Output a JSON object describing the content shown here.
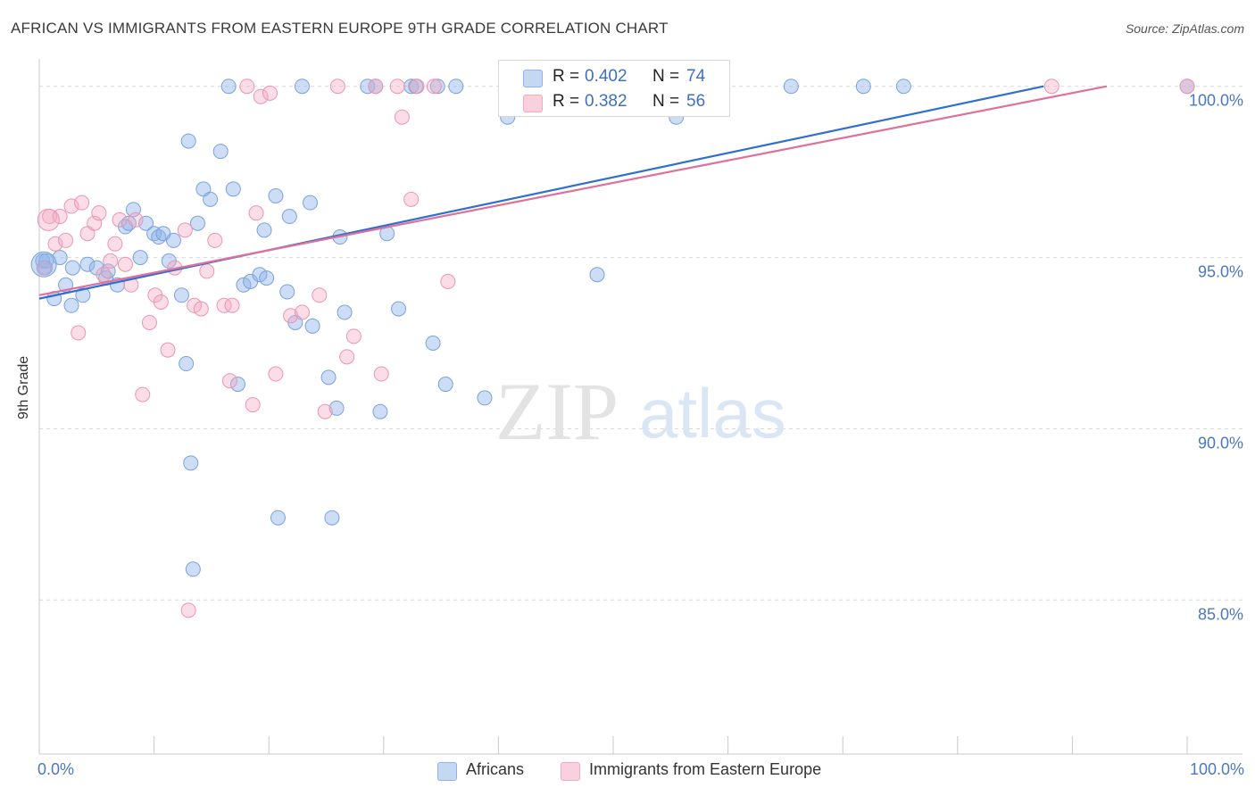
{
  "chart_data": {
    "type": "scatter",
    "title": "AFRICAN VS IMMIGRANTS FROM EASTERN EUROPE 9TH GRADE CORRELATION CHART",
    "source": "Source: ZipAtlas.com",
    "xlabel": "",
    "ylabel": "9th Grade",
    "x_tick_labels": {
      "min": "0.0%",
      "max": "100.0%"
    },
    "y_tick_labels": [
      "100.0%",
      "95.0%",
      "90.0%",
      "85.0%"
    ],
    "y_ticks": [
      100,
      95,
      90,
      85
    ],
    "xlim": [
      0,
      100
    ],
    "ylim": [
      80.5,
      100.8
    ],
    "grid": true,
    "watermark": "ZIPatlas",
    "legend_position": "top-center",
    "colors": {
      "africans": "#8fb3e8",
      "africans_line": "#2f6fcf",
      "immigrants": "#f3a9c0",
      "immigrants_line": "#e0709a",
      "tick_text": "#4a78c2"
    },
    "series": [
      {
        "name": "Africans",
        "R": "0.402",
        "N": "74",
        "trend": {
          "x0": 0,
          "y0": 93.8,
          "x1": 87.5,
          "y1": 100
        },
        "points": [
          [
            0.3,
            94.9
          ],
          [
            0.5,
            94.7
          ],
          [
            1.3,
            93.8
          ],
          [
            1.8,
            95.0
          ],
          [
            2.3,
            94.2
          ],
          [
            2.8,
            93.6
          ],
          [
            2.9,
            94.7
          ],
          [
            3.8,
            93.9
          ],
          [
            4.2,
            94.8
          ],
          [
            5.0,
            94.7
          ],
          [
            5.8,
            94.4
          ],
          [
            6.0,
            94.6
          ],
          [
            6.8,
            94.2
          ],
          [
            7.5,
            95.9
          ],
          [
            7.8,
            96.0
          ],
          [
            8.2,
            96.4
          ],
          [
            8.8,
            95.0
          ],
          [
            9.3,
            96.0
          ],
          [
            10.0,
            95.7
          ],
          [
            10.4,
            95.6
          ],
          [
            10.8,
            95.7
          ],
          [
            11.3,
            94.9
          ],
          [
            11.7,
            95.5
          ],
          [
            12.4,
            93.9
          ],
          [
            13.0,
            98.4
          ],
          [
            12.8,
            91.9
          ],
          [
            13.2,
            89.0
          ],
          [
            13.8,
            96.0
          ],
          [
            14.3,
            97.0
          ],
          [
            14.9,
            96.7
          ],
          [
            15.8,
            98.1
          ],
          [
            16.5,
            100
          ],
          [
            16.9,
            97.0
          ],
          [
            17.3,
            91.3
          ],
          [
            17.8,
            94.2
          ],
          [
            18.4,
            94.3
          ],
          [
            19.2,
            94.5
          ],
          [
            19.6,
            95.8
          ],
          [
            19.8,
            94.4
          ],
          [
            20.6,
            96.8
          ],
          [
            20.8,
            87.4
          ],
          [
            21.6,
            94.0
          ],
          [
            21.8,
            96.2
          ],
          [
            22.3,
            93.1
          ],
          [
            22.9,
            100
          ],
          [
            23.6,
            96.6
          ],
          [
            23.8,
            93.0
          ],
          [
            25.2,
            91.5
          ],
          [
            25.5,
            87.4
          ],
          [
            25.9,
            90.6
          ],
          [
            26.2,
            95.6
          ],
          [
            26.6,
            93.4
          ],
          [
            28.6,
            100
          ],
          [
            29.3,
            100
          ],
          [
            29.7,
            90.5
          ],
          [
            30.3,
            95.7
          ],
          [
            31.3,
            93.5
          ],
          [
            32.4,
            100
          ],
          [
            32.8,
            100
          ],
          [
            34.3,
            92.5
          ],
          [
            34.7,
            100
          ],
          [
            35.4,
            91.3
          ],
          [
            36.3,
            100
          ],
          [
            38.8,
            90.9
          ],
          [
            40.8,
            99.1
          ],
          [
            43.2,
            100
          ],
          [
            48.6,
            94.5
          ],
          [
            55.5,
            99.1
          ],
          [
            65.5,
            100
          ],
          [
            71.8,
            100
          ],
          [
            75.3,
            100
          ],
          [
            100,
            100
          ],
          [
            13.4,
            85.9
          ],
          [
            0.6,
            94.9
          ]
        ]
      },
      {
        "name": "Immigrants from Eastern Europe",
        "R": "0.382",
        "N": "56",
        "trend": {
          "x0": 0,
          "y0": 93.9,
          "x1": 93.0,
          "y1": 100
        },
        "points": [
          [
            0.4,
            94.7
          ],
          [
            0.9,
            96.2
          ],
          [
            1.4,
            95.4
          ],
          [
            1.8,
            96.2
          ],
          [
            2.3,
            95.5
          ],
          [
            2.8,
            96.5
          ],
          [
            3.4,
            92.8
          ],
          [
            3.7,
            96.6
          ],
          [
            4.2,
            95.7
          ],
          [
            4.8,
            96.0
          ],
          [
            5.2,
            96.3
          ],
          [
            5.6,
            94.5
          ],
          [
            6.2,
            94.9
          ],
          [
            6.6,
            95.4
          ],
          [
            7.0,
            96.1
          ],
          [
            7.5,
            94.8
          ],
          [
            8.0,
            94.2
          ],
          [
            8.4,
            96.1
          ],
          [
            9.0,
            91.0
          ],
          [
            9.6,
            93.1
          ],
          [
            10.1,
            93.9
          ],
          [
            10.6,
            93.7
          ],
          [
            11.2,
            92.3
          ],
          [
            11.8,
            94.7
          ],
          [
            12.7,
            95.8
          ],
          [
            13.0,
            84.7
          ],
          [
            13.5,
            93.6
          ],
          [
            14.1,
            93.5
          ],
          [
            14.6,
            94.6
          ],
          [
            15.3,
            95.5
          ],
          [
            16.1,
            93.6
          ],
          [
            16.8,
            93.6
          ],
          [
            16.6,
            91.4
          ],
          [
            18.1,
            100
          ],
          [
            18.6,
            90.7
          ],
          [
            18.9,
            96.3
          ],
          [
            19.3,
            99.7
          ],
          [
            20.1,
            99.8
          ],
          [
            20.6,
            91.6
          ],
          [
            21.9,
            93.3
          ],
          [
            22.9,
            93.4
          ],
          [
            24.4,
            93.9
          ],
          [
            24.9,
            90.5
          ],
          [
            26.0,
            100
          ],
          [
            26.8,
            92.1
          ],
          [
            27.4,
            92.7
          ],
          [
            29.3,
            100
          ],
          [
            29.8,
            91.6
          ],
          [
            31.2,
            100
          ],
          [
            31.6,
            99.1
          ],
          [
            32.4,
            96.7
          ],
          [
            34.4,
            100
          ],
          [
            35.6,
            94.3
          ],
          [
            88.2,
            100
          ],
          [
            100,
            100
          ],
          [
            32.9,
            100
          ]
        ]
      }
    ]
  }
}
